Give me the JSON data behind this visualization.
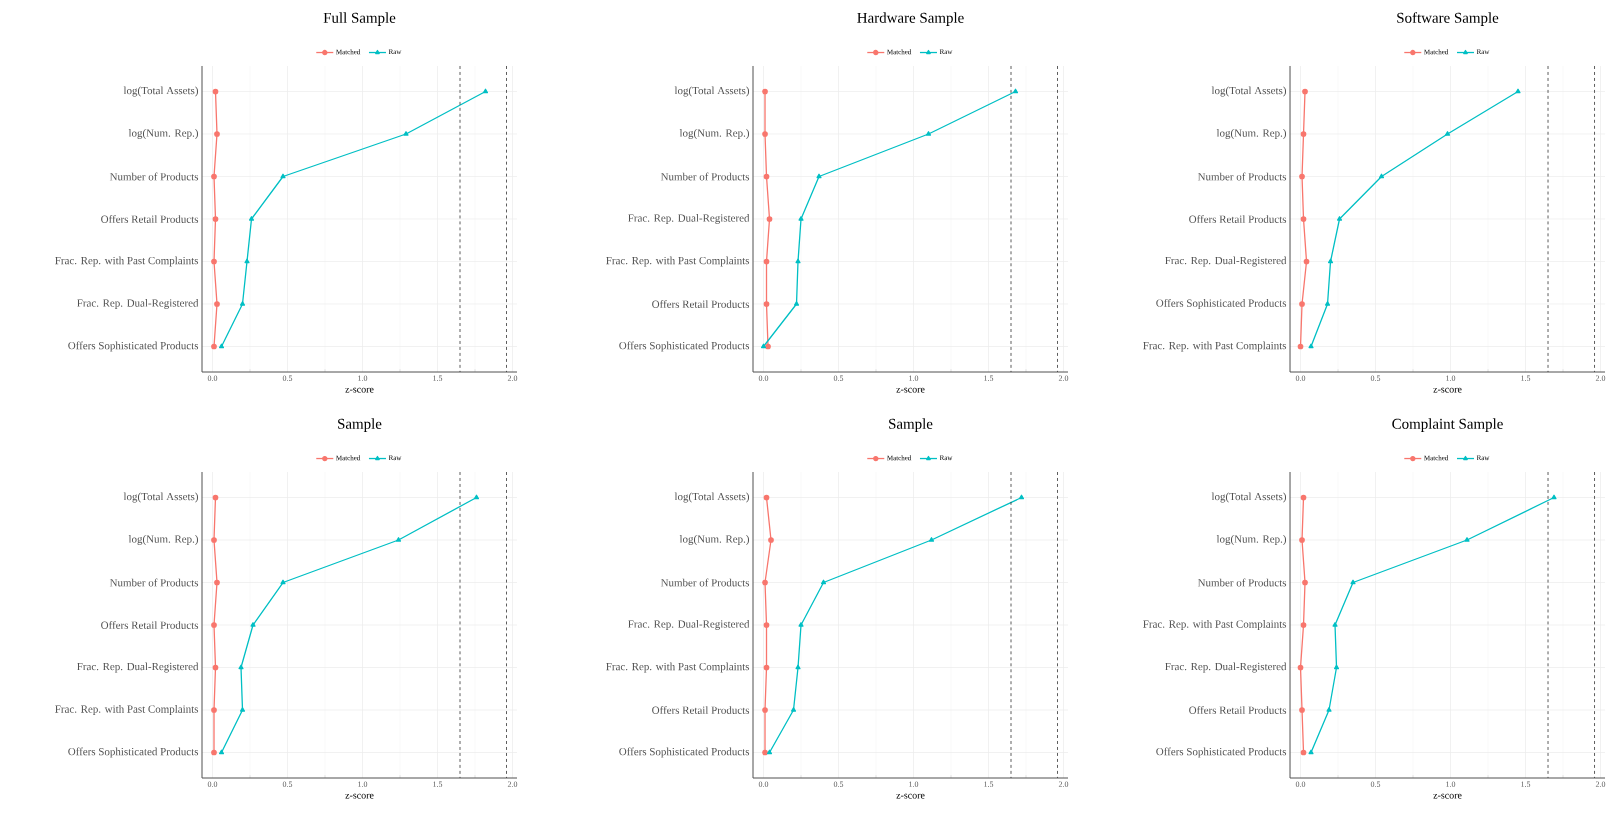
{
  "chart_data": [
    {
      "type": "line",
      "orientation": "horizontal",
      "title": "Full Sample",
      "xlabel": "z-score",
      "categories": [
        "log(Total Assets)",
        "log(Num. Rep.)",
        "Number of Products",
        "Offers Retail Products",
        "Frac. Rep. with Past Complaints",
        "Frac. Rep. Dual-Registered",
        "Offers Sophisticated Products"
      ],
      "series": [
        {
          "name": "Matched",
          "color": "#f8766d",
          "marker": "circle",
          "values": [
            0.02,
            0.03,
            0.01,
            0.02,
            0.01,
            0.03,
            0.01
          ]
        },
        {
          "name": "Raw",
          "color": "#00bfc4",
          "marker": "triangle",
          "values": [
            1.82,
            1.29,
            0.47,
            0.26,
            0.23,
            0.2,
            0.06
          ]
        }
      ],
      "xlim": [
        -0.07,
        2.03
      ],
      "xticks": [
        {
          "value": 0,
          "label": "0.0"
        },
        {
          "value": 0.5,
          "label": "0.5"
        },
        {
          "value": 1,
          "label": "1.0"
        },
        {
          "value": 1.5,
          "label": "1.5"
        },
        {
          "value": 2,
          "label": "2.0"
        }
      ],
      "grid": true,
      "legend": "top",
      "ref_lines": [
        {
          "axis": "x",
          "value": 1.65,
          "line_style": "dashed",
          "color": "#333333"
        },
        {
          "axis": "x",
          "value": 1.96,
          "line_style": "dashed",
          "color": "#333333"
        }
      ]
    },
    {
      "type": "line",
      "orientation": "horizontal",
      "title": "Hardware Sample",
      "xlabel": "z-score",
      "categories": [
        "log(Total Assets)",
        "log(Num. Rep.)",
        "Number of Products",
        "Frac. Rep. Dual-Registered",
        "Frac. Rep. with Past Complaints",
        "Offers Retail Products",
        "Offers Sophisticated Products"
      ],
      "series": [
        {
          "name": "Matched",
          "color": "#f8766d",
          "marker": "circle",
          "values": [
            0.01,
            0.01,
            0.02,
            0.04,
            0.02,
            0.02,
            0.03
          ]
        },
        {
          "name": "Raw",
          "color": "#00bfc4",
          "marker": "triangle",
          "values": [
            1.68,
            1.1,
            0.37,
            0.25,
            0.23,
            0.22,
            0.0
          ]
        }
      ],
      "xlim": [
        -0.07,
        2.03
      ],
      "xticks": [
        {
          "value": 0,
          "label": "0.0"
        },
        {
          "value": 0.5,
          "label": "0.5"
        },
        {
          "value": 1,
          "label": "1.0"
        },
        {
          "value": 1.5,
          "label": "1.5"
        },
        {
          "value": 2,
          "label": "2.0"
        }
      ],
      "grid": true,
      "legend": "top",
      "ref_lines": [
        {
          "axis": "x",
          "value": 1.65,
          "line_style": "dashed",
          "color": "#333333"
        },
        {
          "axis": "x",
          "value": 1.96,
          "line_style": "dashed",
          "color": "#333333"
        }
      ]
    },
    {
      "type": "line",
      "orientation": "horizontal",
      "title": "Software Sample",
      "xlabel": "z-score",
      "categories": [
        "log(Total Assets)",
        "log(Num. Rep.)",
        "Number of Products",
        "Offers Retail Products",
        "Frac. Rep. Dual-Registered",
        "Offers Sophisticated Products",
        "Frac. Rep. with Past Complaints"
      ],
      "series": [
        {
          "name": "Matched",
          "color": "#f8766d",
          "marker": "circle",
          "values": [
            0.03,
            0.02,
            0.01,
            0.02,
            0.04,
            0.01,
            0.0
          ]
        },
        {
          "name": "Raw",
          "color": "#00bfc4",
          "marker": "triangle",
          "values": [
            1.45,
            0.98,
            0.54,
            0.26,
            0.2,
            0.18,
            0.07
          ]
        }
      ],
      "xlim": [
        -0.07,
        2.03
      ],
      "xticks": [
        {
          "value": 0,
          "label": "0.0"
        },
        {
          "value": 0.5,
          "label": "0.5"
        },
        {
          "value": 1,
          "label": "1.0"
        },
        {
          "value": 1.5,
          "label": "1.5"
        },
        {
          "value": 2,
          "label": "2.0"
        }
      ],
      "grid": true,
      "legend": "top",
      "ref_lines": [
        {
          "axis": "x",
          "value": 1.65,
          "line_style": "dashed",
          "color": "#333333"
        },
        {
          "axis": "x",
          "value": 1.96,
          "line_style": "dashed",
          "color": "#333333"
        }
      ]
    },
    {
      "type": "line",
      "orientation": "horizontal",
      "title": "Sample",
      "xlabel": "z-score",
      "categories": [
        "log(Total Assets)",
        "log(Num. Rep.)",
        "Number of Products",
        "Offers Retail Products",
        "Frac. Rep. Dual-Registered",
        "Frac. Rep. with Past Complaints",
        "Offers Sophisticated Products"
      ],
      "series": [
        {
          "name": "Matched",
          "color": "#f8766d",
          "marker": "circle",
          "values": [
            0.02,
            0.01,
            0.03,
            0.01,
            0.02,
            0.01,
            0.01
          ]
        },
        {
          "name": "Raw",
          "color": "#00bfc4",
          "marker": "triangle",
          "values": [
            1.76,
            1.24,
            0.47,
            0.27,
            0.19,
            0.2,
            0.06
          ]
        }
      ],
      "xlim": [
        -0.07,
        2.03
      ],
      "xticks": [
        {
          "value": 0,
          "label": "0.0"
        },
        {
          "value": 0.5,
          "label": "0.5"
        },
        {
          "value": 1,
          "label": "1.0"
        },
        {
          "value": 1.5,
          "label": "1.5"
        },
        {
          "value": 2,
          "label": "2.0"
        }
      ],
      "grid": true,
      "legend": "top",
      "ref_lines": [
        {
          "axis": "x",
          "value": 1.65,
          "line_style": "dashed",
          "color": "#333333"
        },
        {
          "axis": "x",
          "value": 1.96,
          "line_style": "dashed",
          "color": "#333333"
        }
      ]
    },
    {
      "type": "line",
      "orientation": "horizontal",
      "title": "Sample",
      "xlabel": "z-score",
      "categories": [
        "log(Total Assets)",
        "log(Num. Rep.)",
        "Number of Products",
        "Frac. Rep. Dual-Registered",
        "Frac. Rep. with Past Complaints",
        "Offers Retail Products",
        "Offers Sophisticated Products"
      ],
      "series": [
        {
          "name": "Matched",
          "color": "#f8766d",
          "marker": "circle",
          "values": [
            0.02,
            0.05,
            0.01,
            0.02,
            0.02,
            0.01,
            0.01
          ]
        },
        {
          "name": "Raw",
          "color": "#00bfc4",
          "marker": "triangle",
          "values": [
            1.72,
            1.12,
            0.4,
            0.25,
            0.23,
            0.2,
            0.04
          ]
        }
      ],
      "xlim": [
        -0.07,
        2.03
      ],
      "xticks": [
        {
          "value": 0,
          "label": "0.0"
        },
        {
          "value": 0.5,
          "label": "0.5"
        },
        {
          "value": 1,
          "label": "1.0"
        },
        {
          "value": 1.5,
          "label": "1.5"
        },
        {
          "value": 2,
          "label": "2.0"
        }
      ],
      "grid": true,
      "legend": "top",
      "ref_lines": [
        {
          "axis": "x",
          "value": 1.65,
          "line_style": "dashed",
          "color": "#333333"
        },
        {
          "axis": "x",
          "value": 1.96,
          "line_style": "dashed",
          "color": "#333333"
        }
      ]
    },
    {
      "type": "line",
      "orientation": "horizontal",
      "title": "Complaint Sample",
      "xlabel": "z-score",
      "categories": [
        "log(Total Assets)",
        "log(Num. Rep.)",
        "Number of Products",
        "Frac. Rep. with Past Complaints",
        "Frac. Rep. Dual-Registered",
        "Offers Retail Products",
        "Offers Sophisticated Products"
      ],
      "series": [
        {
          "name": "Matched",
          "color": "#f8766d",
          "marker": "circle",
          "values": [
            0.02,
            0.01,
            0.03,
            0.02,
            0.0,
            0.01,
            0.02
          ]
        },
        {
          "name": "Raw",
          "color": "#00bfc4",
          "marker": "triangle",
          "values": [
            1.69,
            1.11,
            0.35,
            0.23,
            0.24,
            0.19,
            0.07
          ]
        }
      ],
      "xlim": [
        -0.07,
        2.03
      ],
      "xticks": [
        {
          "value": 0,
          "label": "0.0"
        },
        {
          "value": 0.5,
          "label": "0.5"
        },
        {
          "value": 1,
          "label": "1.0"
        },
        {
          "value": 1.5,
          "label": "1.5"
        },
        {
          "value": 2,
          "label": "2.0"
        }
      ],
      "grid": true,
      "legend": "top",
      "ref_lines": [
        {
          "axis": "x",
          "value": 1.65,
          "line_style": "dashed",
          "color": "#333333"
        },
        {
          "axis": "x",
          "value": 1.96,
          "line_style": "dashed",
          "color": "#333333"
        }
      ]
    }
  ]
}
